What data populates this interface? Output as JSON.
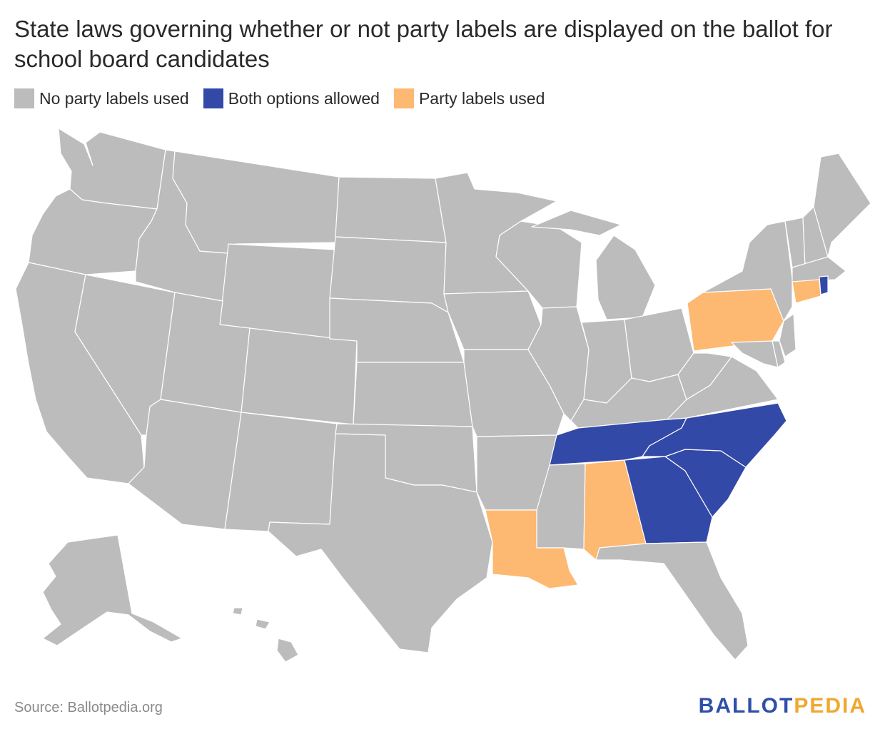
{
  "title": "State laws governing whether or not party labels are displayed on the ballot for school board candidates",
  "legend": [
    {
      "label": "No party labels used",
      "color": "#bcbcbc"
    },
    {
      "label": "Both options allowed",
      "color": "#3349a8"
    },
    {
      "label": "Party labels used",
      "color": "#fdb871"
    }
  ],
  "categories": {
    "none": "#bcbcbc",
    "both": "#3349a8",
    "party": "#fdb871"
  },
  "states_by_category": {
    "both": [
      "Tennessee",
      "Georgia",
      "South Carolina",
      "North Carolina",
      "Rhode Island"
    ],
    "party": [
      "Pennsylvania",
      "Connecticut",
      "Alabama",
      "Louisiana"
    ],
    "none": [
      "all other states"
    ]
  },
  "source": "Source: Ballotpedia.org",
  "logo": {
    "part1": "BALLOT",
    "part2": "PEDIA"
  }
}
